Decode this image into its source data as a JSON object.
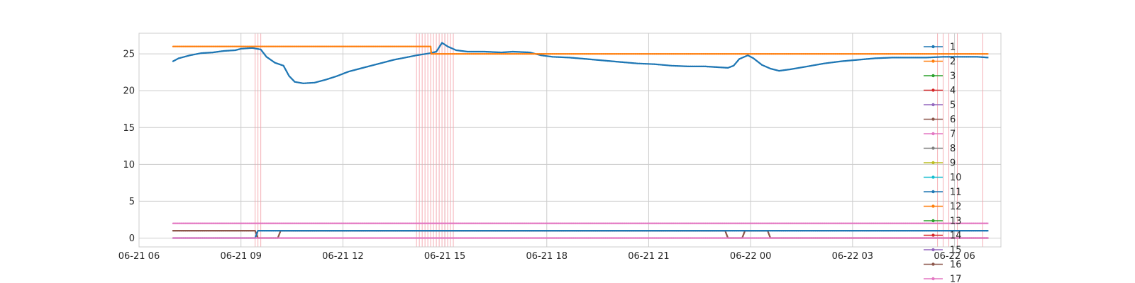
{
  "chart_data": {
    "type": "line",
    "title": "",
    "xlabel": "",
    "ylabel": "",
    "x_type": "time",
    "xlim": [
      "2021-06-21 06:00",
      "2021-06-22 07:22"
    ],
    "ylim": [
      -1.2,
      27.8
    ],
    "grid": true,
    "x_ticks": [
      {
        "t": "2021-06-21 06:00",
        "label": "06-21 06"
      },
      {
        "t": "2021-06-21 09:00",
        "label": "06-21 09"
      },
      {
        "t": "2021-06-21 12:00",
        "label": "06-21 12"
      },
      {
        "t": "2021-06-21 15:00",
        "label": "06-21 15"
      },
      {
        "t": "2021-06-21 18:00",
        "label": "06-21 18"
      },
      {
        "t": "2021-06-21 21:00",
        "label": "06-21 21"
      },
      {
        "t": "2021-06-22 00:00",
        "label": "06-22 00"
      },
      {
        "t": "2021-06-22 03:00",
        "label": "06-22 03"
      },
      {
        "t": "2021-06-22 06:00",
        "label": "06-22 06"
      }
    ],
    "y_ticks": [
      0,
      5,
      10,
      15,
      20,
      25
    ],
    "event_lines": [
      "2021-06-21 09:25",
      "2021-06-21 09:30",
      "2021-06-21 09:35",
      "2021-06-21 14:10",
      "2021-06-21 14:15",
      "2021-06-21 14:20",
      "2021-06-21 14:25",
      "2021-06-21 14:30",
      "2021-06-21 14:35",
      "2021-06-21 14:40",
      "2021-06-21 14:45",
      "2021-06-21 14:50",
      "2021-06-21 14:55",
      "2021-06-21 15:00",
      "2021-06-21 15:05",
      "2021-06-21 15:10",
      "2021-06-21 15:15",
      "2021-06-22 05:30",
      "2021-06-22 05:40",
      "2021-06-22 05:50",
      "2021-06-22 06:05",
      "2021-06-22 06:50"
    ],
    "event_line_color": "#f4a0a8",
    "legend": {
      "placement": "right",
      "entries": [
        "1",
        "2",
        "3",
        "4",
        "5",
        "6",
        "7",
        "8",
        "9",
        "10",
        "11",
        "12",
        "13",
        "14",
        "15",
        "16",
        "17"
      ],
      "colors": [
        "#1f77b4",
        "#ff7f0e",
        "#2ca02c",
        "#d62728",
        "#9467bd",
        "#8c564b",
        "#e377c2",
        "#7f7f7f",
        "#bcbd22",
        "#17becf",
        "#1f77b4",
        "#ff7f0e",
        "#2ca02c",
        "#d62728",
        "#9467bd",
        "#8c564b",
        "#e377c2"
      ]
    },
    "series": [
      {
        "name": "1",
        "color": "#1f77b4",
        "points": [
          [
            "2021-06-21 07:00",
            24.0
          ],
          [
            "2021-06-21 07:10",
            24.4
          ],
          [
            "2021-06-21 07:30",
            24.8
          ],
          [
            "2021-06-21 07:50",
            25.1
          ],
          [
            "2021-06-21 08:10",
            25.2
          ],
          [
            "2021-06-21 08:30",
            25.4
          ],
          [
            "2021-06-21 08:50",
            25.5
          ],
          [
            "2021-06-21 09:00",
            25.7
          ],
          [
            "2021-06-21 09:20",
            25.8
          ],
          [
            "2021-06-21 09:35",
            25.6
          ],
          [
            "2021-06-21 09:45",
            24.6
          ],
          [
            "2021-06-21 10:00",
            23.8
          ],
          [
            "2021-06-21 10:15",
            23.4
          ],
          [
            "2021-06-21 10:25",
            22.0
          ],
          [
            "2021-06-21 10:35",
            21.2
          ],
          [
            "2021-06-21 10:50",
            21.0
          ],
          [
            "2021-06-21 11:10",
            21.1
          ],
          [
            "2021-06-21 11:30",
            21.5
          ],
          [
            "2021-06-21 11:50",
            22.0
          ],
          [
            "2021-06-21 12:10",
            22.6
          ],
          [
            "2021-06-21 12:30",
            23.0
          ],
          [
            "2021-06-21 12:50",
            23.4
          ],
          [
            "2021-06-21 13:10",
            23.8
          ],
          [
            "2021-06-21 13:30",
            24.2
          ],
          [
            "2021-06-21 13:50",
            24.5
          ],
          [
            "2021-06-21 14:10",
            24.8
          ],
          [
            "2021-06-21 14:35",
            25.1
          ],
          [
            "2021-06-21 14:45",
            25.3
          ],
          [
            "2021-06-21 14:55",
            26.5
          ],
          [
            "2021-06-21 15:05",
            26.0
          ],
          [
            "2021-06-21 15:20",
            25.5
          ],
          [
            "2021-06-21 15:40",
            25.3
          ],
          [
            "2021-06-21 16:10",
            25.3
          ],
          [
            "2021-06-21 16:40",
            25.2
          ],
          [
            "2021-06-21 17:00",
            25.3
          ],
          [
            "2021-06-21 17:30",
            25.2
          ],
          [
            "2021-06-21 17:50",
            24.8
          ],
          [
            "2021-06-21 18:10",
            24.6
          ],
          [
            "2021-06-21 18:40",
            24.5
          ],
          [
            "2021-06-21 19:10",
            24.3
          ],
          [
            "2021-06-21 19:40",
            24.1
          ],
          [
            "2021-06-21 20:10",
            23.9
          ],
          [
            "2021-06-21 20:40",
            23.7
          ],
          [
            "2021-06-21 21:10",
            23.6
          ],
          [
            "2021-06-21 21:40",
            23.4
          ],
          [
            "2021-06-21 22:10",
            23.3
          ],
          [
            "2021-06-21 22:40",
            23.3
          ],
          [
            "2021-06-21 23:00",
            23.2
          ],
          [
            "2021-06-21 23:20",
            23.1
          ],
          [
            "2021-06-21 23:30",
            23.4
          ],
          [
            "2021-06-21 23:40",
            24.3
          ],
          [
            "2021-06-21 23:55",
            24.8
          ],
          [
            "2021-06-22 00:05",
            24.4
          ],
          [
            "2021-06-22 00:20",
            23.5
          ],
          [
            "2021-06-22 00:35",
            23.0
          ],
          [
            "2021-06-22 00:50",
            22.7
          ],
          [
            "2021-06-22 01:10",
            22.9
          ],
          [
            "2021-06-22 01:40",
            23.3
          ],
          [
            "2021-06-22 02:10",
            23.7
          ],
          [
            "2021-06-22 02:40",
            24.0
          ],
          [
            "2021-06-22 03:10",
            24.2
          ],
          [
            "2021-06-22 03:40",
            24.4
          ],
          [
            "2021-06-22 04:10",
            24.5
          ],
          [
            "2021-06-22 04:40",
            24.5
          ],
          [
            "2021-06-22 05:10",
            24.5
          ],
          [
            "2021-06-22 05:40",
            24.6
          ],
          [
            "2021-06-22 06:10",
            24.6
          ],
          [
            "2021-06-22 06:40",
            24.6
          ],
          [
            "2021-06-22 07:00",
            24.5
          ]
        ]
      },
      {
        "name": "2",
        "color": "#ff7f0e",
        "points": [
          [
            "2021-06-21 07:00",
            26.0
          ],
          [
            "2021-06-21 14:35",
            26.0
          ],
          [
            "2021-06-21 14:36",
            25.0
          ],
          [
            "2021-06-22 07:00",
            25.0
          ]
        ]
      },
      {
        "name": "16",
        "color": "#8c564b",
        "points": [
          [
            "2021-06-21 07:00",
            1.0
          ],
          [
            "2021-06-21 09:25",
            1.0
          ],
          [
            "2021-06-21 09:30",
            0.0
          ],
          [
            "2021-06-21 10:05",
            0.0
          ],
          [
            "2021-06-21 10:10",
            1.0
          ],
          [
            "2021-06-21 14:10",
            1.0
          ],
          [
            "2021-06-21 14:15",
            1.0
          ],
          [
            "2021-06-21 23:15",
            1.0
          ],
          [
            "2021-06-21 23:20",
            0.0
          ],
          [
            "2021-06-21 23:45",
            0.0
          ],
          [
            "2021-06-21 23:50",
            1.0
          ],
          [
            "2021-06-22 00:30",
            1.0
          ],
          [
            "2021-06-22 00:35",
            0.0
          ],
          [
            "2021-06-22 07:00",
            0.0
          ]
        ]
      },
      {
        "name": "11",
        "color": "#1f77b4",
        "points": [
          [
            "2021-06-21 07:00",
            0.0
          ],
          [
            "2021-06-21 09:25",
            0.0
          ],
          [
            "2021-06-21 09:30",
            1.0
          ],
          [
            "2021-06-21 10:05",
            1.0
          ],
          [
            "2021-06-21 10:10",
            1.0
          ],
          [
            "2021-06-21 14:10",
            1.0
          ],
          [
            "2021-06-21 23:15",
            1.0
          ],
          [
            "2021-06-21 23:20",
            1.0
          ],
          [
            "2021-06-22 07:00",
            1.0
          ]
        ]
      },
      {
        "name": "7",
        "color": "#e377c2",
        "points": [
          [
            "2021-06-21 07:00",
            2.0
          ],
          [
            "2021-06-22 07:00",
            2.0
          ]
        ]
      },
      {
        "name": "17",
        "color": "#e377c2",
        "points": [
          [
            "2021-06-21 07:00",
            0.0
          ],
          [
            "2021-06-22 07:00",
            0.0
          ]
        ]
      }
    ]
  }
}
